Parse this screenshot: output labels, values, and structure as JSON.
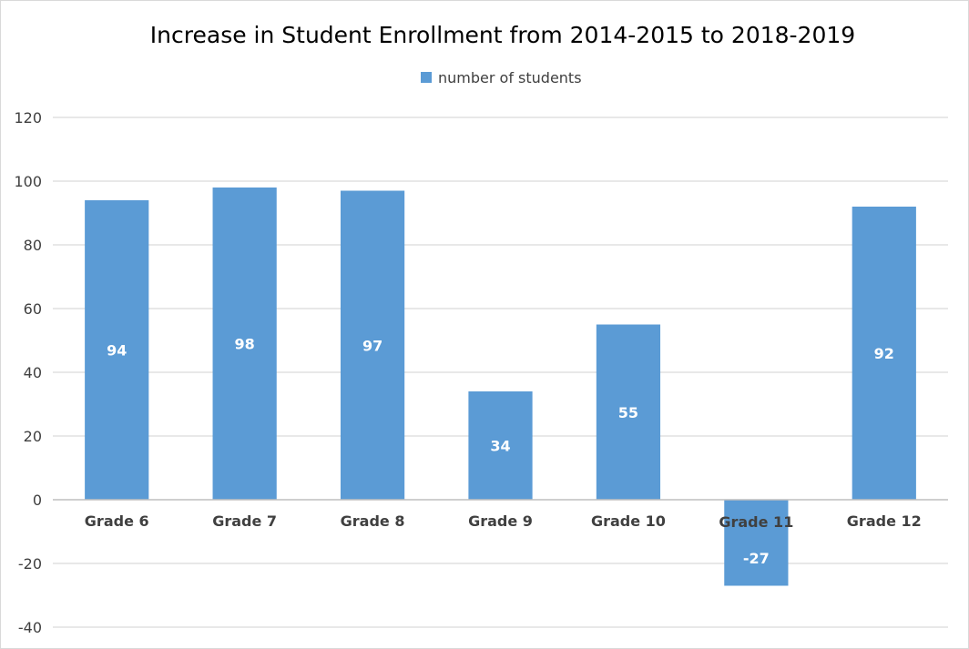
{
  "chart_data": {
    "type": "bar",
    "title": "Increase in Student Enrollment from 2014-2015 to 2018-2019",
    "categories": [
      "Grade 6",
      "Grade 7",
      "Grade 8",
      "Grade 9",
      "Grade 10",
      "Grade 11",
      "Grade 12"
    ],
    "series": [
      {
        "name": "number of students",
        "values": [
          94,
          98,
          97,
          34,
          55,
          -27,
          92
        ],
        "color": "#5b9bd5"
      }
    ],
    "data_labels": [
      "94",
      "98",
      "97",
      "34",
      "55",
      "-27",
      "92"
    ],
    "ylim": [
      -40,
      120
    ],
    "yticks": [
      -40,
      -20,
      0,
      20,
      40,
      60,
      80,
      100,
      120
    ],
    "ytick_labels": [
      "-40",
      "-20",
      "0",
      "20",
      "40",
      "60",
      "80",
      "100",
      "120"
    ],
    "grid": true,
    "legend_position": "top",
    "xlabel": "",
    "ylabel": ""
  }
}
